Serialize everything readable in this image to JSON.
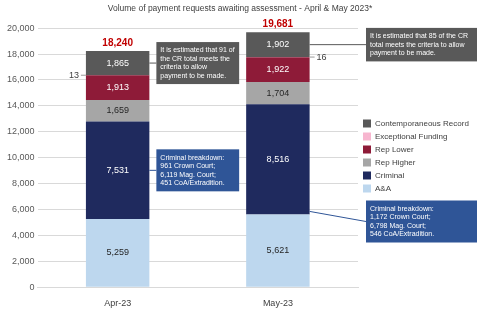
{
  "chart_data": {
    "type": "bar",
    "title": "Volume of payment requests awaiting assessment - April & May 2023*",
    "categories": [
      "Apr-23",
      "May-23"
    ],
    "stacked": true,
    "grid": true,
    "legend": "right",
    "data_labels": true,
    "series": [
      {
        "name": "A&A",
        "color": "#bdd7ee",
        "values": [
          5259,
          5621
        ],
        "value_labels": [
          "5,259",
          "5,621"
        ]
      },
      {
        "name": "Criminal",
        "color": "#1f2a5e",
        "values": [
          7531,
          8516
        ],
        "value_labels": [
          "7,531",
          "8,516"
        ]
      },
      {
        "name": "Rep Higher",
        "color": "#a6a6a6",
        "values": [
          1659,
          1704
        ],
        "value_labels": [
          "1,659",
          "1,704"
        ]
      },
      {
        "name": "Rep Lower",
        "color": "#8e1b38",
        "values": [
          1913,
          1922
        ],
        "value_labels": [
          "1,913",
          "1,922"
        ]
      },
      {
        "name": "Exceptional Funding",
        "color": "#f7b6cf",
        "values": [
          13,
          16
        ]
      },
      {
        "name": "Contemporaneous Record",
        "color": "#595959",
        "values": [
          1865,
          1902
        ],
        "value_labels": [
          "1,865",
          "1,902"
        ]
      }
    ],
    "totals": [
      18240,
      19681
    ],
    "total_labels": [
      "18,240",
      "19,681"
    ],
    "annotations": [
      {
        "series": "Contemporaneous Record",
        "category": "Apr-23",
        "text": "It is estimated that 91 of the CR total meets the criteria to allow payment to be made."
      },
      {
        "series": "Contemporaneous Record",
        "category": "May-23",
        "text": "It is estimated that 85 of the CR total meets the criteria to allow payment to be made."
      },
      {
        "series": "Criminal",
        "category": "Apr-23",
        "text": "Criminal breakdown: 961 Crown Court; 6,119 Mag. Court; 451 CoA/Extradition."
      },
      {
        "series": "Criminal",
        "category": "May-23",
        "text": "Criminal breakdown: 1,172 Crown Court; 6,798 Mag. Court; 546 CoA/Extradition."
      }
    ],
    "ylim": [
      0,
      20000
    ],
    "yticks": [
      0,
      {
        "value": 2000,
        "label": "2,000"
      },
      {
        "value": 4000,
        "label": "4,000"
      },
      {
        "value": 6000,
        "label": "6,000"
      },
      {
        "value": 8000,
        "label": "8,000"
      },
      {
        "value": 10000,
        "label": "10,000"
      },
      {
        "value": 12000,
        "label": "12,000"
      },
      {
        "value": 14000,
        "label": "14,000"
      },
      {
        "value": 16000,
        "label": "16,000"
      },
      {
        "value": 18000,
        "label": "18,000"
      },
      {
        "value": 20000,
        "label": "20,000"
      }
    ]
  }
}
